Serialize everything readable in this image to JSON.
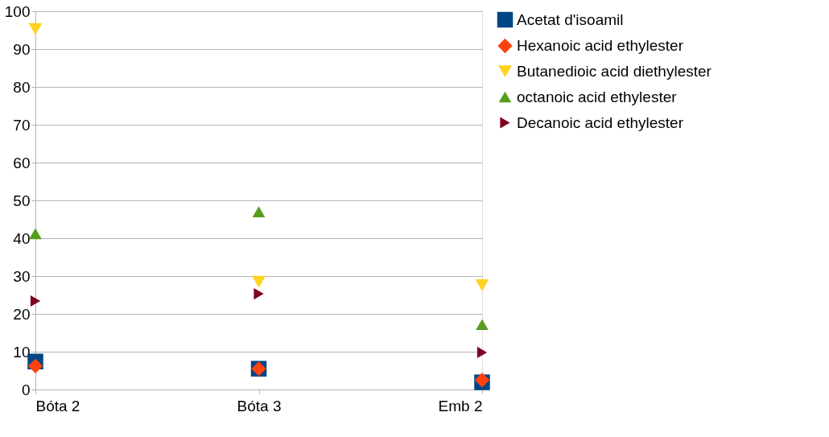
{
  "chart_data": {
    "type": "scatter",
    "categories": [
      "Bóta 2",
      "Bóta 3",
      "Emb 2"
    ],
    "series": [
      {
        "name": "Acetat d'isoamil",
        "color": "#004586",
        "marker": "square",
        "values": [
          7.4,
          5.5,
          1.9
        ]
      },
      {
        "name": "Hexanoic acid ethylester",
        "color": "#ff420e",
        "marker": "diamond",
        "values": [
          6.2,
          5.5,
          2.5
        ]
      },
      {
        "name": "Butanedioic acid diethylester",
        "color": "#ffd320",
        "marker": "triangle-down",
        "values": [
          95.3,
          28.5,
          27.6
        ]
      },
      {
        "name": "octanoic acid ethylester",
        "color": "#579d1c",
        "marker": "triangle-up",
        "values": [
          41.2,
          47,
          17.2
        ]
      },
      {
        "name": "Decanoic acid ethylester",
        "color": "#7e0021",
        "marker": "triangle-right",
        "values": [
          23.4,
          25.3,
          9.8
        ]
      }
    ],
    "ylim": [
      0,
      100
    ],
    "yticks": [
      0,
      10,
      20,
      30,
      40,
      50,
      60,
      70,
      80,
      90,
      100
    ],
    "grid": "y",
    "legend": "right"
  }
}
